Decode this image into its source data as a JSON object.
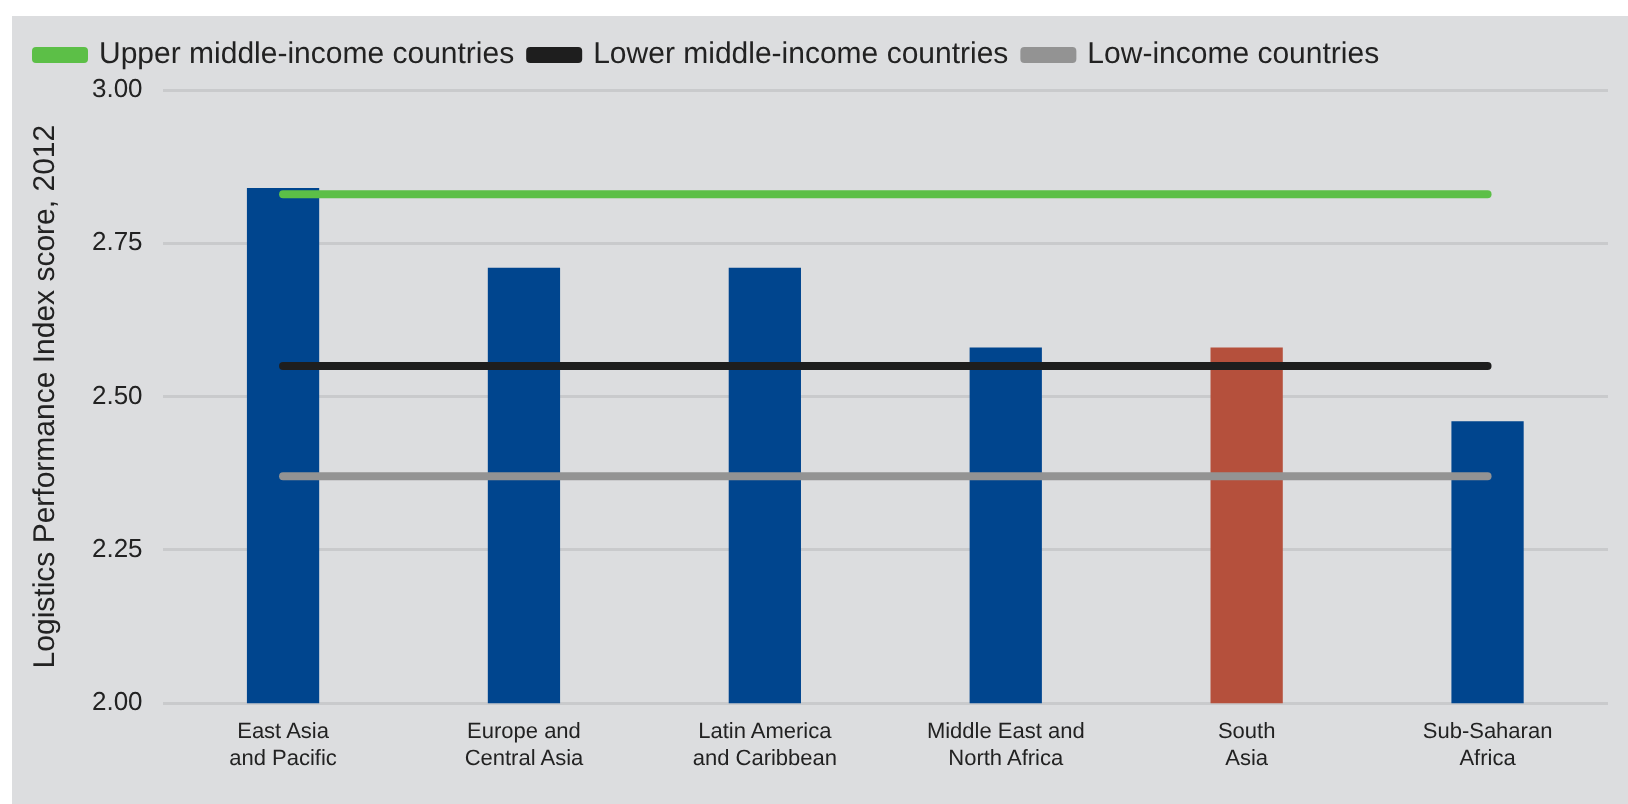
{
  "chart_data": {
    "type": "bar",
    "ylabel": "Logistics Performance Index score, 2012",
    "categories": [
      "East Asia\nand Pacific",
      "Europe and\nCentral Asia",
      "Latin America\nand Caribbean",
      "Middle East and\nNorth Africa",
      "South\nAsia",
      "Sub-Saharan\nAfrica"
    ],
    "series": [
      {
        "colors": [
          "#00458e",
          "#00458e",
          "#00458e",
          "#00458e",
          "#b5503c",
          "#00458e"
        ],
        "values": [
          2.84,
          2.71,
          2.71,
          2.58,
          2.58,
          2.46
        ]
      },
      {
        "type": "line",
        "name": "Upper middle-income countries",
        "color": "#5cbf47",
        "values": [
          2.83,
          2.83,
          2.83,
          2.83,
          2.83,
          2.83
        ]
      },
      {
        "type": "line",
        "name": "Lower middle-income countries",
        "color": "#1e1e1e",
        "values": [
          2.55,
          2.55,
          2.55,
          2.55,
          2.55,
          2.55
        ]
      },
      {
        "type": "line",
        "name": "Low-income countries",
        "color": "#939393",
        "values": [
          2.37,
          2.37,
          2.37,
          2.37,
          2.37,
          2.37
        ]
      }
    ],
    "ylim": [
      2,
      3
    ],
    "yticks": [
      {
        "value": 2,
        "label": "2.00"
      },
      {
        "value": 2.25,
        "label": "2.25"
      },
      {
        "value": 2.5,
        "label": "2.50"
      },
      {
        "value": 2.75,
        "label": "2.75"
      },
      {
        "value": 3,
        "label": "3.00"
      }
    ],
    "grid": "y",
    "legend": "top left",
    "marker": "none"
  }
}
